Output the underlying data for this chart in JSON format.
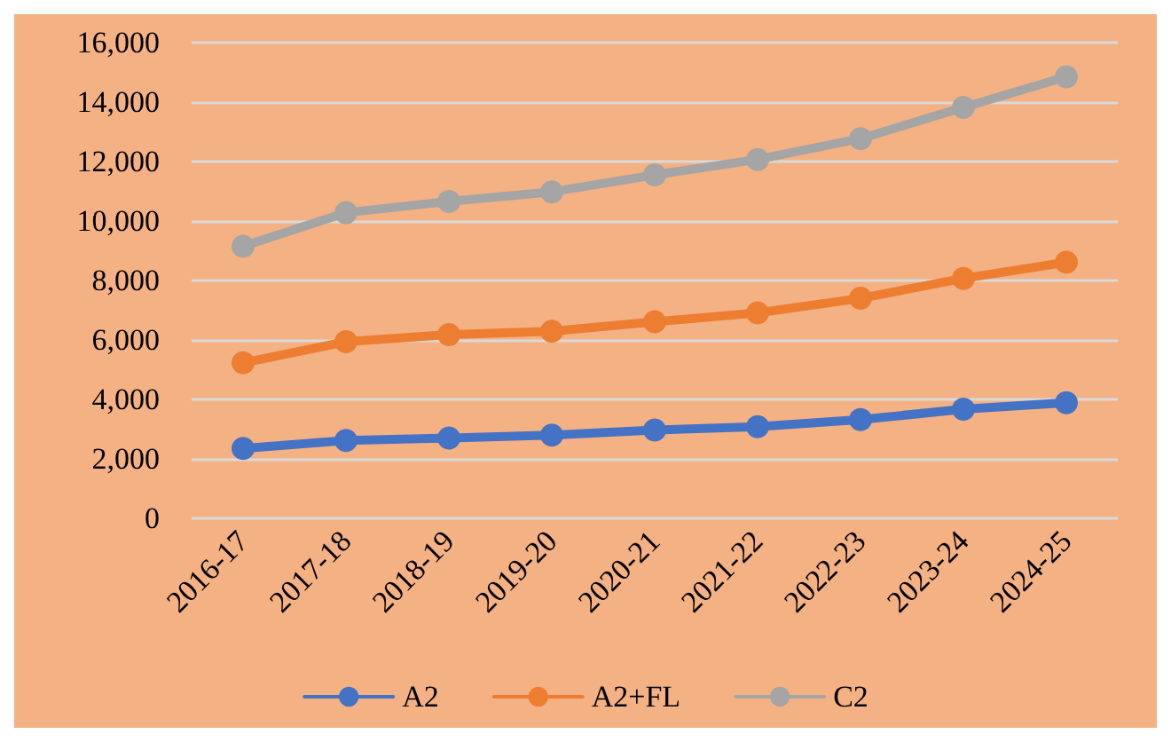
{
  "chart_data": {
    "type": "line",
    "categories": [
      "2016-17",
      "2017-18",
      "2018-19",
      "2019-20",
      "2020-21",
      "2021-22",
      "2022-23",
      "2023-24",
      "2024-25"
    ],
    "series": [
      {
        "name": "A2",
        "color": "#4472c4",
        "values": [
          2350,
          2620,
          2700,
          2800,
          2970,
          3080,
          3320,
          3670,
          3890
        ]
      },
      {
        "name": "A2+FL",
        "color": "#ed7d31",
        "values": [
          5230,
          5940,
          6180,
          6290,
          6610,
          6910,
          7400,
          8070,
          8610
        ]
      },
      {
        "name": "C2",
        "color": "#a5a5a5",
        "values": [
          9150,
          10280,
          10660,
          10980,
          11550,
          12070,
          12770,
          13820,
          14850
        ]
      }
    ],
    "ylim": [
      0,
      16000
    ],
    "yticks": [
      0,
      {
        "value": 2000,
        "label": "2,000"
      },
      {
        "value": 4000,
        "label": "4,000"
      },
      {
        "value": 6000,
        "label": "6,000"
      },
      {
        "value": 8000,
        "label": "8,000"
      },
      {
        "value": 10000,
        "label": "10,000"
      },
      {
        "value": 12000,
        "label": "12,000"
      },
      {
        "value": 14000,
        "label": "14,000"
      },
      {
        "value": 16000,
        "label": "16,000"
      }
    ],
    "grid": "y",
    "legend": "bottom",
    "marker": "circle",
    "line_style": "solid"
  }
}
